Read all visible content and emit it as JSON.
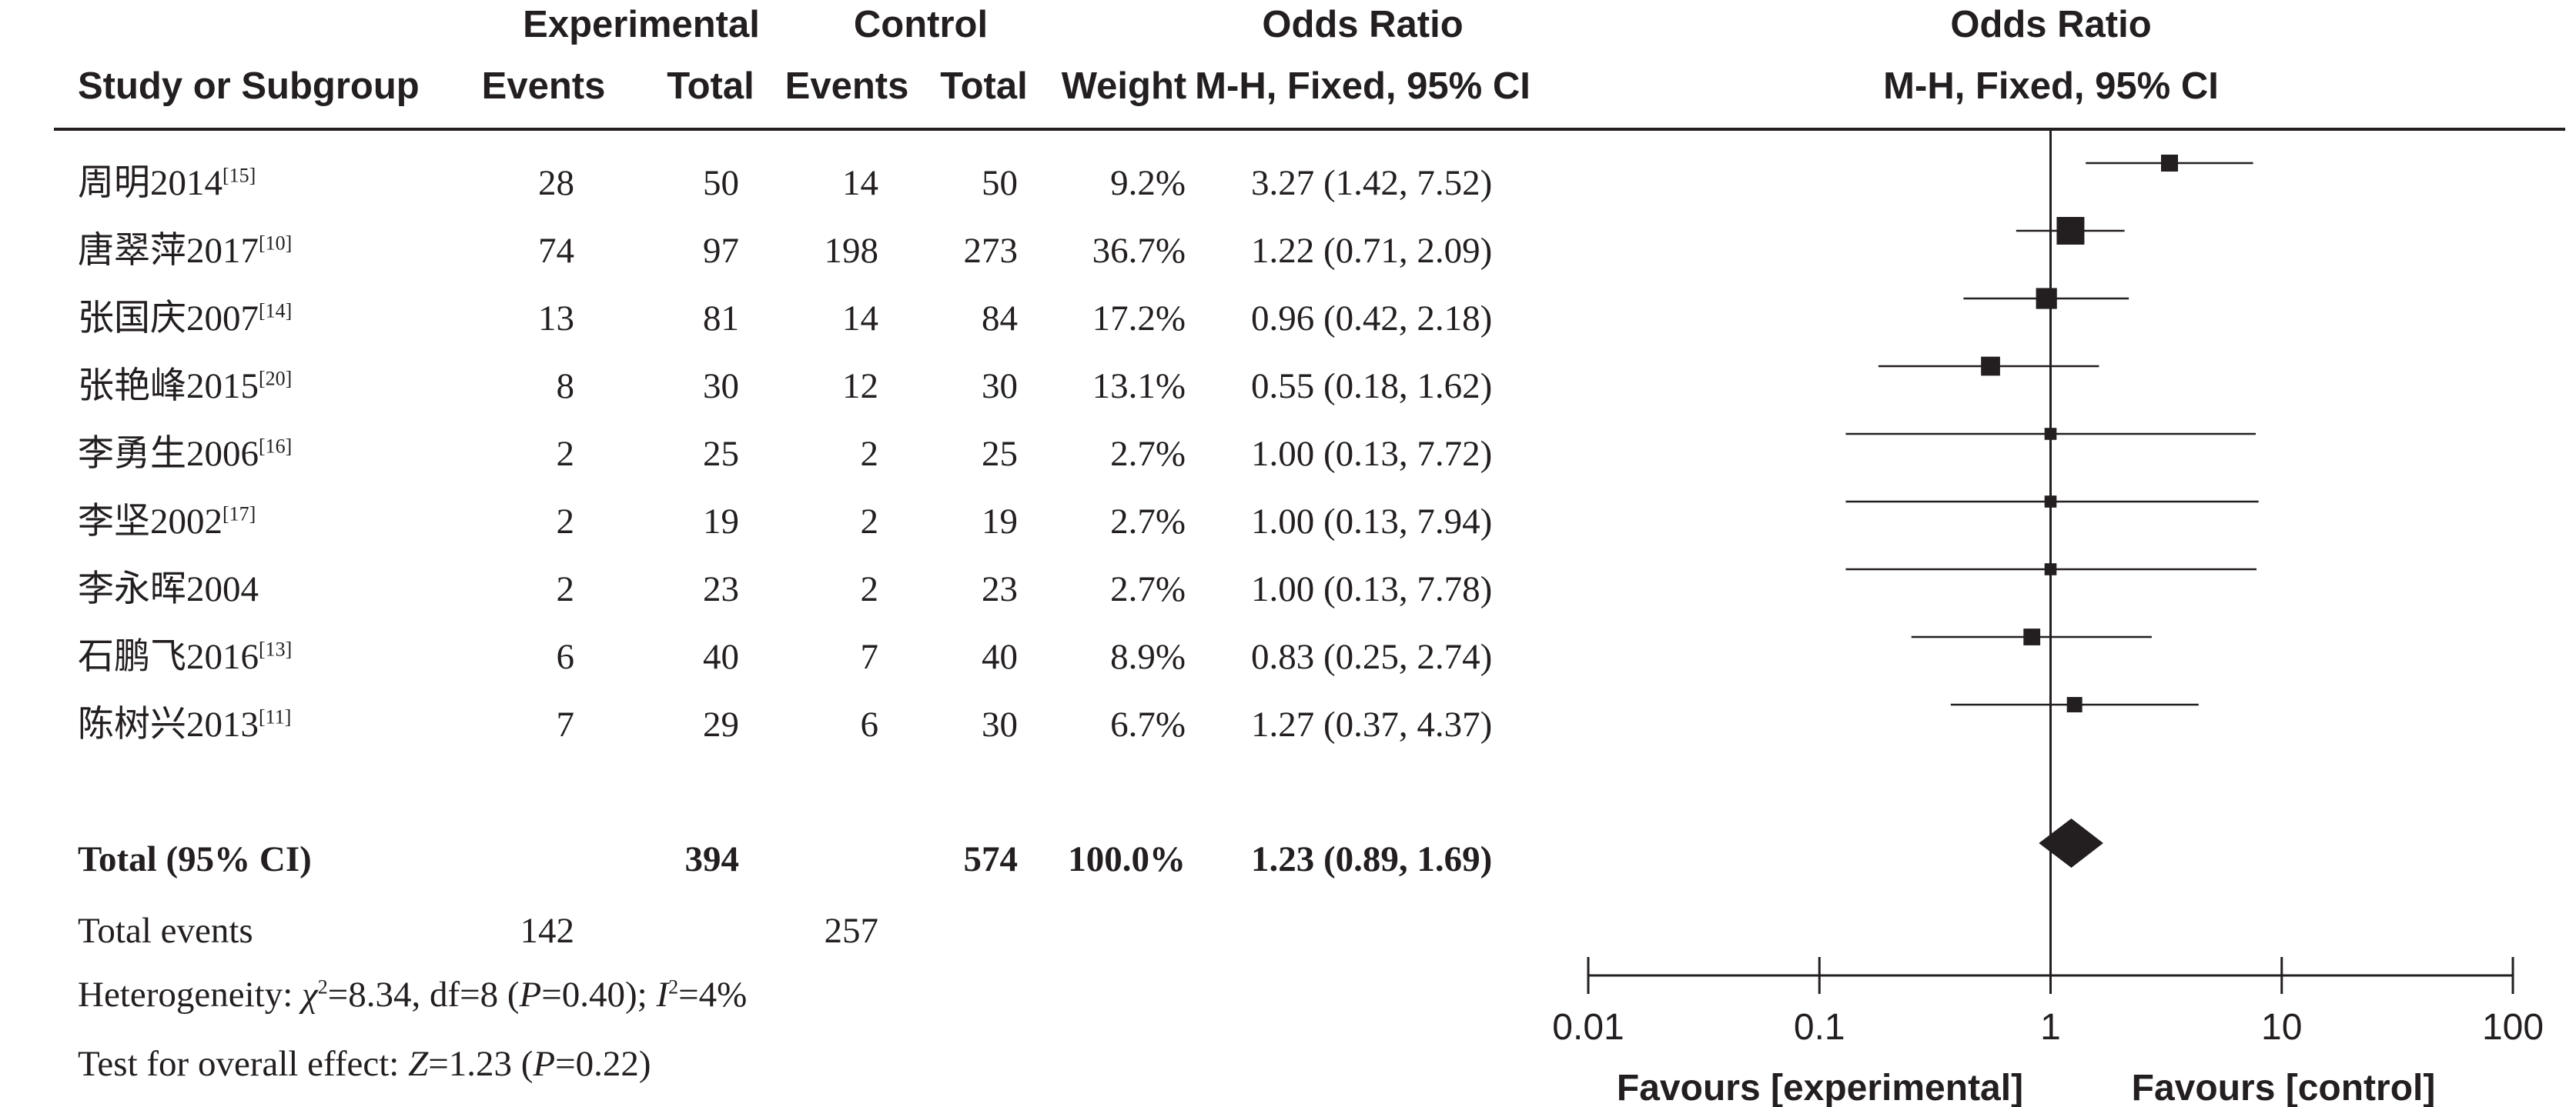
{
  "headers": {
    "study": "Study or Subgroup",
    "experimental": "Experimental",
    "control": "Control",
    "events": "Events",
    "total": "Total",
    "weight": "Weight",
    "or_title": "Odds Ratio",
    "or_method": "M-H, Fixed, 95% CI"
  },
  "rows": [
    {
      "study": "周明2014",
      "ref": "[15]",
      "exp_events": "28",
      "exp_total": "50",
      "ctl_events": "14",
      "ctl_total": "50",
      "weight": "9.2%",
      "ci_text": "3.27 (1.42, 7.52)"
    },
    {
      "study": "唐翠萍2017",
      "ref": "[10]",
      "exp_events": "74",
      "exp_total": "97",
      "ctl_events": "198",
      "ctl_total": "273",
      "weight": "36.7%",
      "ci_text": "1.22 (0.71, 2.09)"
    },
    {
      "study": "张国庆2007",
      "ref": "[14]",
      "exp_events": "13",
      "exp_total": "81",
      "ctl_events": "14",
      "ctl_total": "84",
      "weight": "17.2%",
      "ci_text": "0.96 (0.42, 2.18)"
    },
    {
      "study": "张艳峰2015",
      "ref": "[20]",
      "exp_events": "8",
      "exp_total": "30",
      "ctl_events": "12",
      "ctl_total": "30",
      "weight": "13.1%",
      "ci_text": "0.55 (0.18, 1.62)"
    },
    {
      "study": "李勇生2006",
      "ref": "[16]",
      "exp_events": "2",
      "exp_total": "25",
      "ctl_events": "2",
      "ctl_total": "25",
      "weight": "2.7%",
      "ci_text": "1.00 (0.13, 7.72)"
    },
    {
      "study": "李坚2002",
      "ref": "[17]",
      "exp_events": "2",
      "exp_total": "19",
      "ctl_events": "2",
      "ctl_total": "19",
      "weight": "2.7%",
      "ci_text": "1.00 (0.13, 7.94)"
    },
    {
      "study": "李永晖2004",
      "ref": "",
      "exp_events": "2",
      "exp_total": "23",
      "ctl_events": "2",
      "ctl_total": "23",
      "weight": "2.7%",
      "ci_text": "1.00 (0.13, 7.78)"
    },
    {
      "study": "石鹏飞2016",
      "ref": "[13]",
      "exp_events": "6",
      "exp_total": "40",
      "ctl_events": "7",
      "ctl_total": "40",
      "weight": "8.9%",
      "ci_text": "0.83 (0.25, 2.74)"
    },
    {
      "study": "陈树兴2013",
      "ref": "[11]",
      "exp_events": "7",
      "exp_total": "29",
      "ctl_events": "6",
      "ctl_total": "30",
      "weight": "6.7%",
      "ci_text": "1.27 (0.37, 4.37)"
    }
  ],
  "total_row": {
    "label": "Total (95% CI)",
    "exp_total": "394",
    "ctl_total": "574",
    "weight": "100.0%",
    "ci_text": "1.23 (0.89, 1.69)"
  },
  "total_events": {
    "label": "Total events",
    "exp": "142",
    "ctl": "257"
  },
  "heterogeneity": {
    "prefix": "Heterogeneity: ",
    "chi": "χ",
    "chi_sup": "2",
    "chi_rest": "=8.34, df=8 (",
    "p": "P",
    "p_rest": "=0.40); ",
    "i": "I",
    "i_sup": "2",
    "i_rest": "=4%"
  },
  "overall": {
    "prefix": "Test for overall effect: ",
    "z": "Z",
    "z_rest": "=1.23 (",
    "p": "P",
    "p_rest": "=0.22)"
  },
  "chart_data": {
    "type": "forest",
    "x_scale": "log",
    "xlim": [
      0.01,
      100
    ],
    "x_ticks": [
      "0.01",
      "0.1",
      "1",
      "10",
      "100"
    ],
    "x_tick_values": [
      0.01,
      0.1,
      1,
      10,
      100
    ],
    "reference_line": 1,
    "favours_left": "Favours [experimental]",
    "favours_right": "Favours [control]",
    "studies": [
      {
        "or": 3.27,
        "lo": 1.42,
        "hi": 7.52,
        "weight": 9.2
      },
      {
        "or": 1.22,
        "lo": 0.71,
        "hi": 2.09,
        "weight": 36.7
      },
      {
        "or": 0.96,
        "lo": 0.42,
        "hi": 2.18,
        "weight": 17.2
      },
      {
        "or": 0.55,
        "lo": 0.18,
        "hi": 1.62,
        "weight": 13.1
      },
      {
        "or": 1.0,
        "lo": 0.13,
        "hi": 7.72,
        "weight": 2.7
      },
      {
        "or": 1.0,
        "lo": 0.13,
        "hi": 7.94,
        "weight": 2.7
      },
      {
        "or": 1.0,
        "lo": 0.13,
        "hi": 7.78,
        "weight": 2.7
      },
      {
        "or": 0.83,
        "lo": 0.25,
        "hi": 2.74,
        "weight": 8.9
      },
      {
        "or": 1.27,
        "lo": 0.37,
        "hi": 4.37,
        "weight": 6.7
      }
    ],
    "pooled": {
      "or": 1.23,
      "lo": 0.89,
      "hi": 1.69
    }
  }
}
